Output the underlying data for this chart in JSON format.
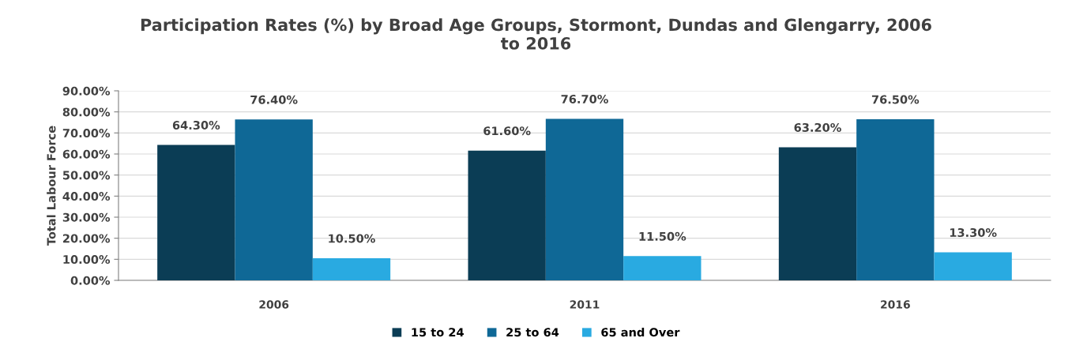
{
  "chart_data": {
    "type": "bar",
    "title": "Participation Rates (%) by Broad Age Groups, Stormont, Dundas and Glengarry, 2006\nto 2016",
    "ylabel": "Total Labour Force",
    "categories": [
      "2006",
      "2011",
      "2016"
    ],
    "series": [
      {
        "name": "15 to 24",
        "color": "#0b3d55",
        "values": [
          64.3,
          61.6,
          63.2
        ],
        "value_labels": [
          "64.30%",
          "61.60%",
          "63.20%"
        ]
      },
      {
        "name": "25 to 64",
        "color": "#0f6896",
        "values": [
          76.4,
          76.7,
          76.5
        ],
        "value_labels": [
          "76.40%",
          "76.70%",
          "76.50%"
        ]
      },
      {
        "name": "65 and Over",
        "color": "#29aae1",
        "values": [
          10.5,
          11.5,
          13.3
        ],
        "value_labels": [
          "10.50%",
          "11.50%",
          "13.30%"
        ]
      }
    ],
    "ylim": [
      0,
      90
    ],
    "yticks": [
      {
        "value": 0,
        "label": "0.00%"
      },
      {
        "value": 10,
        "label": "10.00%"
      },
      {
        "value": 20,
        "label": "20.00%"
      },
      {
        "value": 30,
        "label": "30.00%"
      },
      {
        "value": 40,
        "label": "40.00%"
      },
      {
        "value": 50,
        "label": "50.00%"
      },
      {
        "value": 60,
        "label": "60.00%"
      },
      {
        "value": 70,
        "label": "70.00%"
      },
      {
        "value": 80,
        "label": "80.00%"
      },
      {
        "value": 90,
        "label": "90.00%"
      }
    ],
    "grid": "y",
    "legend": "bottom"
  }
}
